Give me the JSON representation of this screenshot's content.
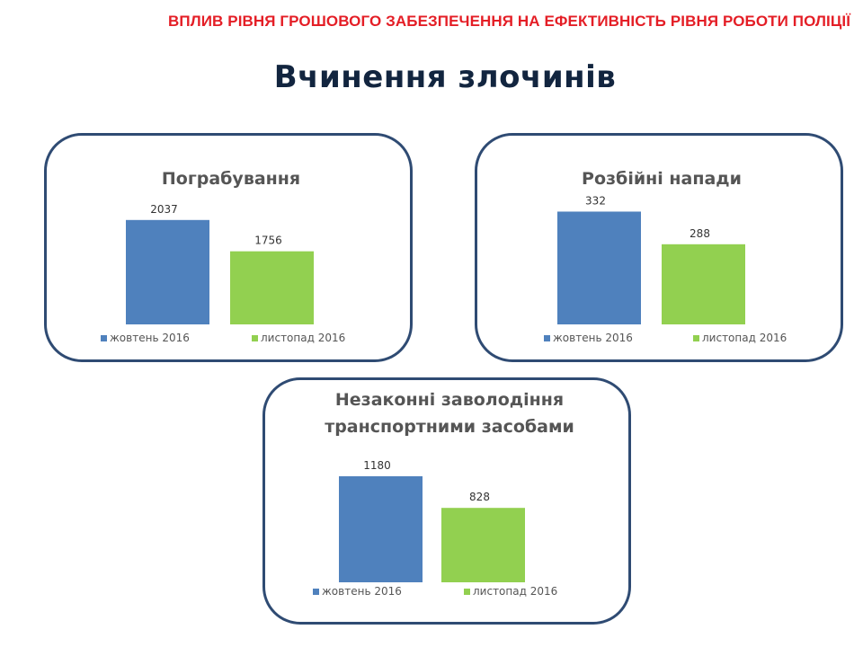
{
  "header": {
    "top_title": "ВПЛИВ РІВНЯ ГРОШОВОГО ЗАБЕЗПЕЧЕННЯ НА ЕФЕКТИВНІСТЬ РІВНЯ РОБОТИ ПОЛІЦІЇ",
    "main_title": "Вчинення злочинів"
  },
  "colors": {
    "title_red": "#e41e26",
    "heading_navy": "#12253f",
    "panel_border": "#2f4b73",
    "october": "#4f81bd",
    "november": "#92d050"
  },
  "chart_data": [
    {
      "type": "bar",
      "title": [
        "Пограбування"
      ],
      "categories": [
        "жовтень 2016",
        "листопад 2016"
      ],
      "values": [
        2037,
        1756
      ],
      "value_labels": [
        "2037",
        "1756"
      ],
      "ylim": [
        1100,
        2100
      ],
      "legend": [
        "жовтень 2016",
        "листопад 2016"
      ],
      "legend_position": "bottom",
      "grid": false
    },
    {
      "type": "bar",
      "title": [
        "Розбійні напади"
      ],
      "categories": [
        "жовтень 2016",
        "листопад 2016"
      ],
      "values": [
        332,
        288
      ],
      "value_labels": [
        "332",
        "288"
      ],
      "ylim": [
        180,
        335
      ],
      "legend": [
        "жовтень 2016",
        "листопад 2016"
      ],
      "legend_position": "bottom",
      "grid": false
    },
    {
      "type": "bar",
      "title": [
        "Незаконні заволодіння",
        "транспортними засобами"
      ],
      "categories": [
        "жовтень 2016",
        "листопад 2016"
      ],
      "values": [
        1180,
        828
      ],
      "value_labels": [
        "1180",
        "828"
      ],
      "ylim": [
        0,
        1200
      ],
      "legend": [
        "жовтень 2016",
        "листопад 2016"
      ],
      "legend_position": "bottom",
      "grid": false
    }
  ]
}
